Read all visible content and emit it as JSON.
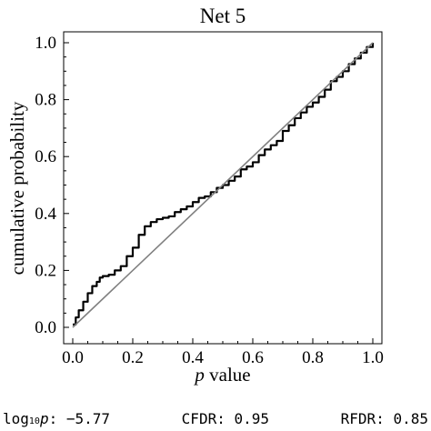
{
  "chart_data": {
    "type": "line",
    "title": "Net 5",
    "xlabel": "p value",
    "ylabel": "cumulative probability",
    "xlim": [
      0,
      1
    ],
    "ylim": [
      0,
      1
    ],
    "x_ticks": [
      "0.0",
      "0.2",
      "0.4",
      "0.6",
      "0.8",
      "1.0"
    ],
    "y_ticks": [
      "0.0",
      "0.2",
      "0.4",
      "0.6",
      "0.8",
      "1.0"
    ],
    "grid": false,
    "series": [
      {
        "role": "empirical",
        "color": "#000000",
        "x": [
          0.0,
          0.01,
          0.02,
          0.035,
          0.05,
          0.065,
          0.08,
          0.09,
          0.1,
          0.12,
          0.14,
          0.16,
          0.18,
          0.2,
          0.22,
          0.24,
          0.26,
          0.28,
          0.3,
          0.32,
          0.34,
          0.36,
          0.38,
          0.4,
          0.42,
          0.44,
          0.46,
          0.48,
          0.5,
          0.52,
          0.54,
          0.56,
          0.58,
          0.6,
          0.62,
          0.64,
          0.66,
          0.68,
          0.7,
          0.72,
          0.74,
          0.76,
          0.78,
          0.8,
          0.82,
          0.84,
          0.86,
          0.88,
          0.9,
          0.92,
          0.94,
          0.96,
          0.98,
          1.0
        ],
        "y": [
          0.01,
          0.035,
          0.06,
          0.09,
          0.12,
          0.145,
          0.16,
          0.175,
          0.18,
          0.185,
          0.2,
          0.215,
          0.25,
          0.28,
          0.325,
          0.355,
          0.37,
          0.38,
          0.385,
          0.39,
          0.405,
          0.415,
          0.425,
          0.44,
          0.455,
          0.46,
          0.475,
          0.49,
          0.5,
          0.515,
          0.53,
          0.555,
          0.565,
          0.58,
          0.605,
          0.625,
          0.64,
          0.655,
          0.69,
          0.71,
          0.735,
          0.755,
          0.775,
          0.79,
          0.81,
          0.835,
          0.865,
          0.88,
          0.9,
          0.925,
          0.945,
          0.965,
          0.985,
          1.0
        ]
      },
      {
        "role": "reference",
        "color": "#808080",
        "x": [
          0,
          1
        ],
        "y": [
          0,
          1
        ]
      }
    ]
  },
  "stats": {
    "log_label": "log",
    "log_sub": "10",
    "log_var": "p",
    "log_value": ": −5.77",
    "cfdr_label": "CFDR:",
    "cfdr_value": "0.95",
    "rfdr_label": "RFDR:",
    "rfdr_value": "0.85"
  }
}
